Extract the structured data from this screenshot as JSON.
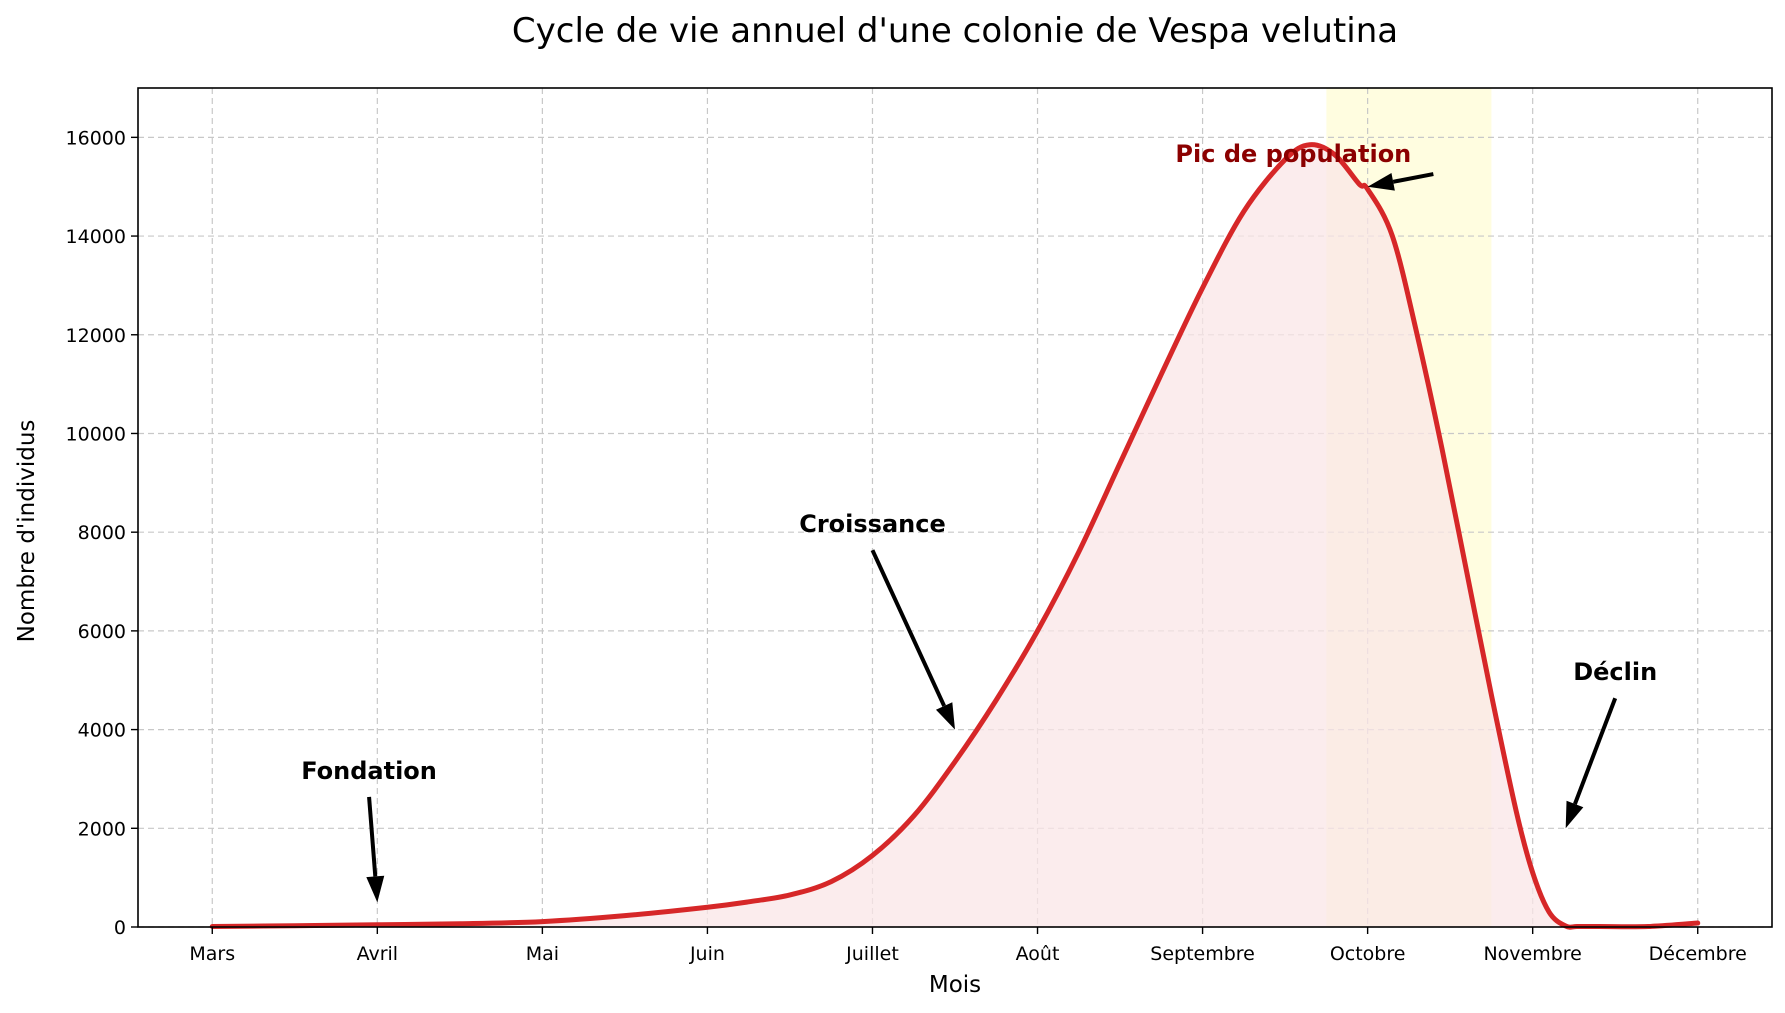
{
  "chart_data": {
    "type": "area",
    "title": "Cycle de vie annuel d'une colonie de Vespa velutina",
    "xlabel": "Mois",
    "ylabel": "Nombre d'individus",
    "xlim": [
      -0.45,
      9.45
    ],
    "ylim": [
      0,
      17000
    ],
    "grid": true,
    "categories": [
      "Mars",
      "Avril",
      "Mai",
      "Juin",
      "Juillet",
      "Août",
      "Septembre",
      "Octobre",
      "Novembre",
      "Décembre"
    ],
    "y_ticks": [
      0,
      2000,
      4000,
      6000,
      8000,
      10000,
      12000,
      14000,
      16000
    ],
    "series": [
      {
        "color": "#d62728",
        "fill_color": "#f9e6e7",
        "x": [
          0,
          0.5,
          1,
          1.5,
          2,
          2.5,
          3,
          3.25,
          3.5,
          3.75,
          4,
          4.25,
          4.5,
          4.75,
          5,
          5.25,
          5.5,
          5.75,
          6,
          6.25,
          6.5,
          6.65,
          6.8,
          6.95,
          7,
          7.15,
          7.3,
          7.45,
          7.6,
          7.75,
          7.9,
          8.0,
          8.1,
          8.2,
          8.27,
          8.4,
          8.7,
          9.0
        ],
        "y": [
          10,
          25,
          45,
          65,
          110,
          230,
          400,
          510,
          650,
          920,
          1450,
          2250,
          3350,
          4600,
          6000,
          7600,
          9400,
          11200,
          12950,
          14500,
          15550,
          15850,
          15650,
          15050,
          14950,
          14000,
          12000,
          9700,
          7200,
          4700,
          2350,
          1100,
          300,
          20,
          10,
          10,
          10,
          80
        ]
      }
    ],
    "highlight_band": {
      "x_range": [
        6.75,
        7.75
      ],
      "color": "#fffde0"
    },
    "annotations": [
      {
        "text": "Fondation",
        "text_at": [
          0.95,
          3000
        ],
        "arrow_to": [
          1.0,
          500
        ],
        "color": "#000000"
      },
      {
        "text": "Croissance",
        "text_at": [
          4.0,
          8000
        ],
        "arrow_to": [
          4.5,
          4000
        ],
        "color": "#000000"
      },
      {
        "text": "Pic de population",
        "text_at": [
          6.55,
          15500
        ],
        "arrow_to": [
          7.0,
          15000
        ],
        "color": "#8b0000"
      },
      {
        "text": "Déclin",
        "text_at": [
          8.5,
          5000
        ],
        "arrow_to": [
          8.2,
          2000
        ],
        "color": "#000000"
      }
    ]
  }
}
